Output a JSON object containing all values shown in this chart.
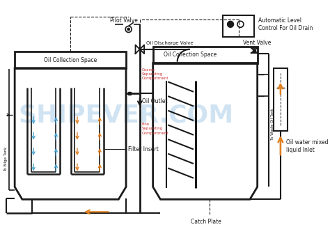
{
  "bg_color": "#ffffff",
  "line_color": "#1a1a1a",
  "orange_color": "#e08020",
  "blue_color": "#4da6d4",
  "red_color": "#cc3333",
  "watermark_color": "#c8dff0",
  "labels": {
    "oil_collection_left": "Oil Collection Space",
    "oil_collection_right": "Oil Collection Space",
    "filter_insert": "Filter Insert",
    "oil_outlet": "Oil Outlet",
    "pilot_valve": "Pilot Valve",
    "oil_discharge_valve": "Oil Discharge Valve",
    "vent_valve": "Vent Valve",
    "auto_level": "Automatic Level\nControl For Oil Drain",
    "coarse_sep": "Coarse\nSeparating\nCompartment",
    "fine_sep": "Fine\nSeparating\nCompartment",
    "catch_plate": "Catch Plate",
    "oil_water_inlet": "Oil water mixed\nliquid Inlet",
    "to_bilge": "To Bilge Tank",
    "to_waste": "To Waste Oil Tank"
  },
  "figsize": [
    4.74,
    3.49
  ],
  "dpi": 100
}
